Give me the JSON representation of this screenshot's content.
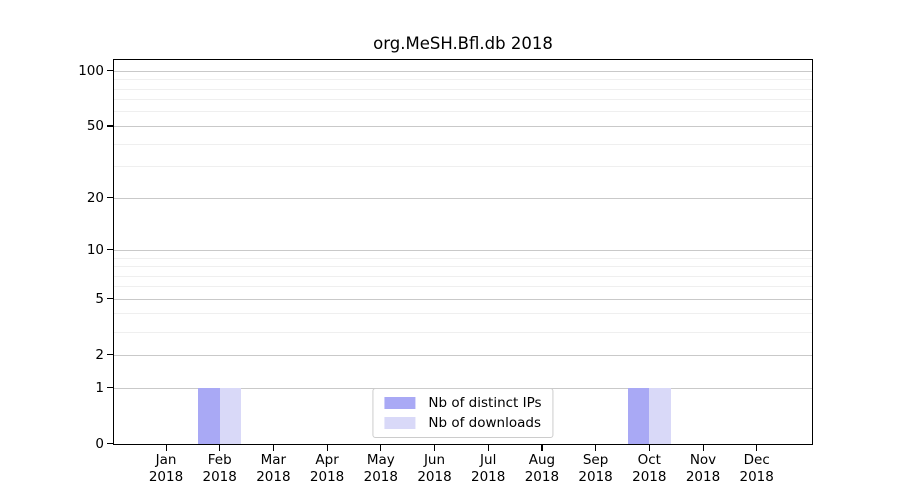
{
  "chart_data": {
    "type": "bar",
    "title": "org.MeSH.Bfl.db 2018",
    "categories": [
      "Jan",
      "Feb",
      "Mar",
      "Apr",
      "May",
      "Jun",
      "Jul",
      "Aug",
      "Sep",
      "Oct",
      "Nov",
      "Dec"
    ],
    "category_year": "2018",
    "series": [
      {
        "name": "Nb of distinct IPs",
        "color": "#a9a9f5",
        "values": [
          0,
          1,
          0,
          0,
          0,
          0,
          0,
          0,
          0,
          1,
          0,
          0
        ]
      },
      {
        "name": "Nb of downloads",
        "color": "#d9d9f8",
        "values": [
          0,
          1,
          0,
          0,
          0,
          0,
          0,
          0,
          0,
          1,
          0,
          0
        ]
      }
    ],
    "y_axis": {
      "scale": "log10(1+value)",
      "tick_values": [
        0,
        1,
        2,
        5,
        10,
        20,
        50,
        100
      ],
      "minor_gridline_values": [
        3,
        4,
        6,
        7,
        8,
        9,
        30,
        40,
        60,
        70,
        80,
        90
      ],
      "range": [
        0,
        113
      ]
    },
    "x_axis": {
      "label": "",
      "tick_label_format": "month newline year"
    },
    "legend": {
      "position": "inside-lower-center",
      "entries": [
        "Nb of distinct IPs",
        "Nb of downloads"
      ]
    },
    "grid": "horizontal",
    "colors": {
      "distinct_ips_bar": "#a9a9f5",
      "downloads_bar": "#d9d9f8",
      "grid_major": "#c9c9c9",
      "grid_minor": "#efefef",
      "spine": "#000000",
      "background": "#ffffff"
    }
  }
}
